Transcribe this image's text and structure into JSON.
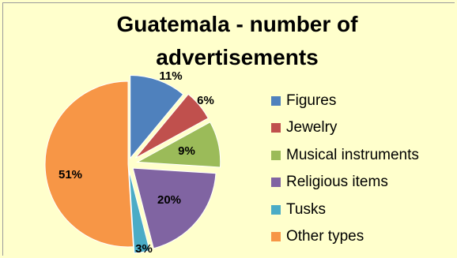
{
  "chart_data": {
    "type": "pie",
    "title": "Guatemala - number of advertisements",
    "legend_position": "right",
    "categories": [
      "Figures",
      "Jewelry",
      "Musical instruments",
      "Religious items",
      "Tusks",
      "Other types"
    ],
    "values": [
      11,
      6,
      9,
      20,
      3,
      51
    ],
    "labels": [
      "11%",
      "6%",
      "9%",
      "20%",
      "3%",
      "51%"
    ],
    "colors": [
      "#4F81BD",
      "#C0504D",
      "#9BBB59",
      "#8064A2",
      "#4BACC6",
      "#F79646"
    ]
  }
}
